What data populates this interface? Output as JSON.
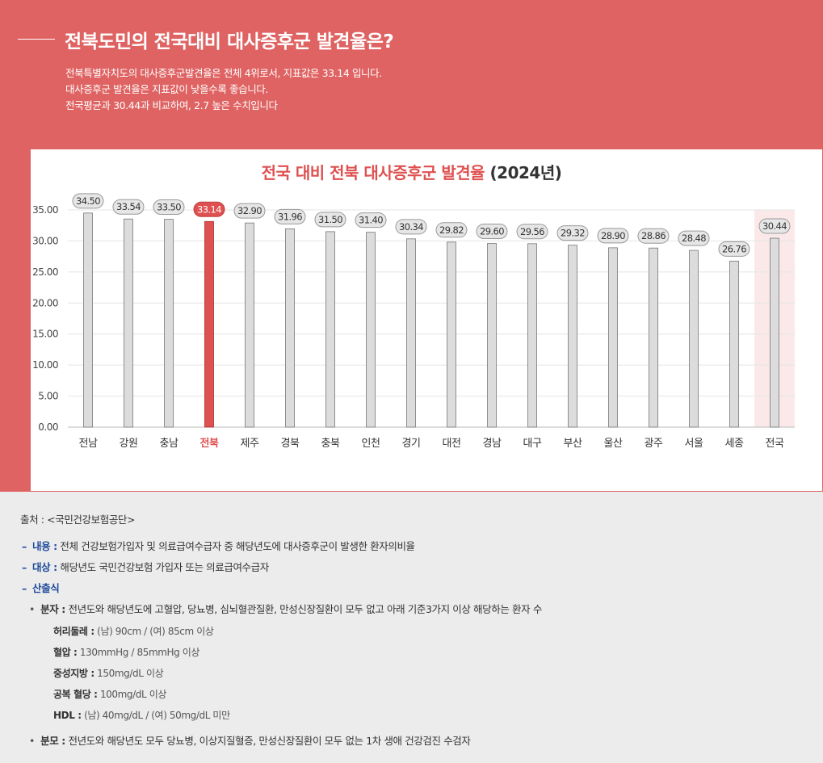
{
  "header": {
    "title": "전북도민의 전국대비 대사증후군 발견율은?",
    "lines": [
      "전북특별자치도의 대사증후군발견율은 전체 4위로서, 지표값은 33.14 입니다.",
      "대사증후군 발견율은 지표값이 낮을수록 좋습니다.",
      "전국평균과 30.44과 비교하여, 2.7  높은 수치입니다"
    ]
  },
  "chart_title": {
    "main": "전국 대비 전북 대사증후군 발견율",
    "year": "(2024년)"
  },
  "chart_data": {
    "type": "bar",
    "categories": [
      "전남",
      "강원",
      "충남",
      "전북",
      "제주",
      "경북",
      "충북",
      "인천",
      "경기",
      "대전",
      "경남",
      "대구",
      "부산",
      "울산",
      "광주",
      "서울",
      "세종",
      "전국"
    ],
    "values": [
      34.5,
      33.54,
      33.5,
      33.14,
      32.9,
      31.96,
      31.5,
      31.4,
      30.34,
      29.82,
      29.6,
      29.56,
      29.32,
      28.9,
      28.86,
      28.48,
      26.76,
      30.44
    ],
    "value_labels": [
      "34.50",
      "33.54",
      "33.50",
      "33.14",
      "32.90",
      "31.96",
      "31.50",
      "31.40",
      "30.34",
      "29.82",
      "29.60",
      "29.56",
      "29.32",
      "28.90",
      "28.86",
      "28.48",
      "26.76",
      "30.44"
    ],
    "yticks": [
      "0.00",
      "5.00",
      "10.00",
      "15.00",
      "20.00",
      "25.00",
      "30.00",
      "35.00"
    ],
    "ylim": [
      0,
      35
    ],
    "highlight": "전북",
    "highlight_band": "전국",
    "grid": true,
    "colors": {
      "bar": "#dcdcdc",
      "highlight": "#df5050",
      "band": "#fbe9e9"
    }
  },
  "footer": {
    "source": "출처 : <국민건강보험공단>",
    "content_key": "내용 :",
    "content": "전체 건강보험가입자 및 의료급여수급자 중 해당년도에 대사증후군이 발생한 환자의비율",
    "target_key": "대상 :",
    "target": "해당년도 국민건강보험 가입자 또는 의료급여수급자",
    "formula_key": "산출식",
    "numerator_key": "분자 :",
    "numerator": "전년도와 해당년도에 고혈압, 당뇨병, 심뇌혈관질환, 만성신장질환이 모두 없고 아래 기준3가지 이상 해당하는 환자 수",
    "criteria": [
      {
        "key": "허리둘레 :",
        "value": "(남) 90cm / (여) 85cm 이상"
      },
      {
        "key": "혈압 :",
        "value": "130mmHg / 85mmHg 이상"
      },
      {
        "key": "중성지방 :",
        "value": "150mg/dL 이상"
      },
      {
        "key": "공복 혈당 :",
        "value": "100mg/dL 이상"
      },
      {
        "key": "HDL :",
        "value": "(남) 40mg/dL / (여) 50mg/dL 미만"
      }
    ],
    "denominator_key": "분모 :",
    "denominator": "전년도와 해당년도 모두 당뇨병, 이상지질혈증, 만성신장질환이 모두 없는 1차 생애 건강검진 수검자"
  }
}
